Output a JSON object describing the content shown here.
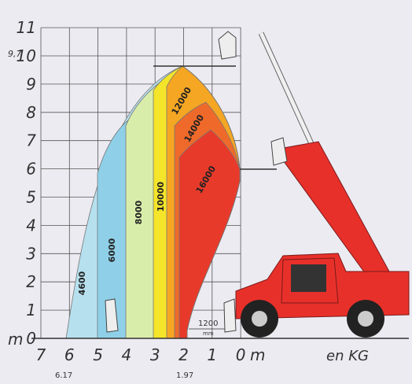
{
  "y_axis": {
    "labels": [
      "0",
      "1",
      "2",
      "3",
      "4",
      "5",
      "6",
      "7",
      "8",
      "9",
      "10",
      "11"
    ],
    "unit": "m",
    "marker": "9,7"
  },
  "x_axis": {
    "labels": [
      "7",
      "6",
      "5",
      "4",
      "3",
      "2",
      "1",
      "0"
    ],
    "unit": "m",
    "markers": [
      "6.17",
      "1.97"
    ]
  },
  "unit_label": "en KG",
  "zones": [
    {
      "label": "4600"
    },
    {
      "label": "6000"
    },
    {
      "label": "8000"
    },
    {
      "label": "10000"
    },
    {
      "label": "12000"
    },
    {
      "label": "14000"
    },
    {
      "label": "16000"
    }
  ],
  "clearance": {
    "value": "1200",
    "unit": "mm"
  }
}
